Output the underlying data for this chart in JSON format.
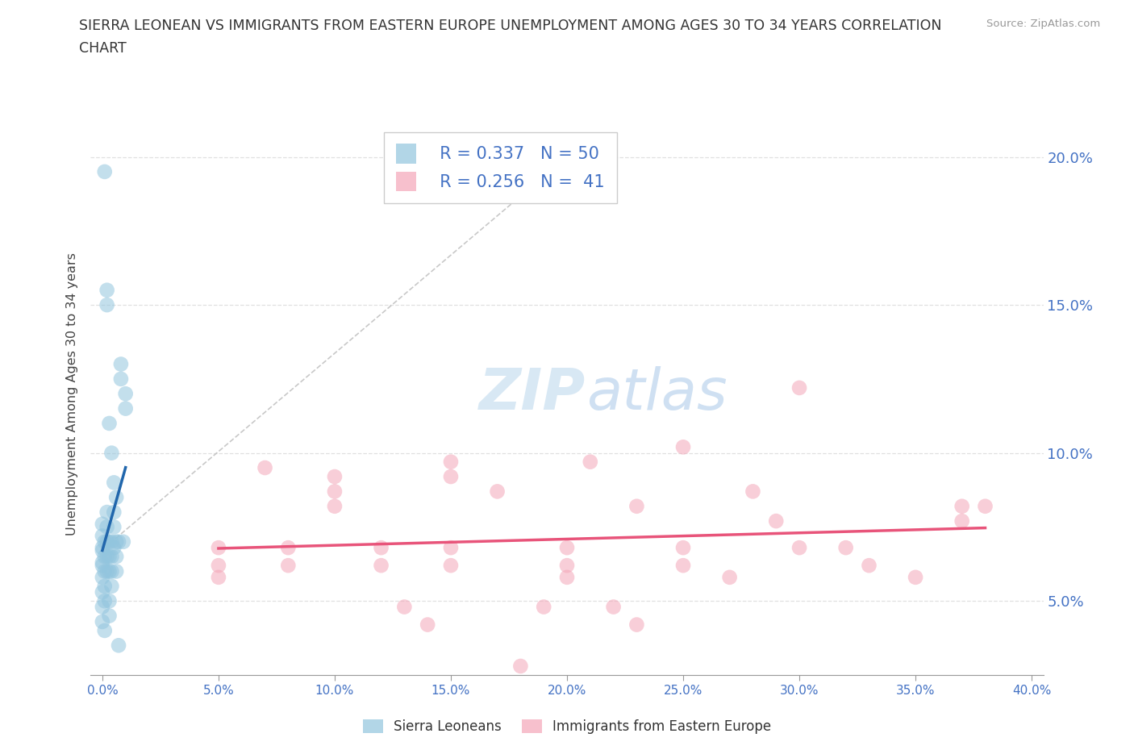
{
  "title_line1": "SIERRA LEONEAN VS IMMIGRANTS FROM EASTERN EUROPE UNEMPLOYMENT AMONG AGES 30 TO 34 YEARS CORRELATION",
  "title_line2": "CHART",
  "source": "Source: ZipAtlas.com",
  "ylabel": "Unemployment Among Ages 30 to 34 years",
  "R_blue": 0.337,
  "N_blue": 50,
  "R_pink": 0.256,
  "N_pink": 41,
  "xlim": [
    -0.005,
    0.405
  ],
  "ylim": [
    0.025,
    0.215
  ],
  "xtick_vals": [
    0.0,
    0.05,
    0.1,
    0.15,
    0.2,
    0.25,
    0.3,
    0.35,
    0.4
  ],
  "ytick_vals": [
    0.05,
    0.1,
    0.15,
    0.2
  ],
  "blue_color": "#92c5de",
  "pink_color": "#f4a6b8",
  "blue_line_color": "#2166ac",
  "pink_line_color": "#e8547a",
  "dash_color": "#bbbbbb",
  "watermark_color": "#c8dff0",
  "label_color": "#4472c4",
  "blue_scatter": [
    [
      0.0,
      0.068
    ],
    [
      0.0,
      0.072
    ],
    [
      0.0,
      0.062
    ],
    [
      0.0,
      0.076
    ],
    [
      0.0,
      0.058
    ],
    [
      0.0,
      0.053
    ],
    [
      0.0,
      0.048
    ],
    [
      0.0,
      0.043
    ],
    [
      0.0,
      0.063
    ],
    [
      0.0,
      0.067
    ],
    [
      0.001,
      0.065
    ],
    [
      0.001,
      0.07
    ],
    [
      0.001,
      0.06
    ],
    [
      0.001,
      0.055
    ],
    [
      0.001,
      0.05
    ],
    [
      0.001,
      0.04
    ],
    [
      0.002,
      0.065
    ],
    [
      0.002,
      0.07
    ],
    [
      0.002,
      0.06
    ],
    [
      0.002,
      0.075
    ],
    [
      0.002,
      0.08
    ],
    [
      0.003,
      0.065
    ],
    [
      0.003,
      0.07
    ],
    [
      0.003,
      0.06
    ],
    [
      0.003,
      0.05
    ],
    [
      0.003,
      0.045
    ],
    [
      0.004,
      0.065
    ],
    [
      0.004,
      0.07
    ],
    [
      0.004,
      0.06
    ],
    [
      0.004,
      0.055
    ],
    [
      0.005,
      0.075
    ],
    [
      0.005,
      0.08
    ],
    [
      0.005,
      0.068
    ],
    [
      0.006,
      0.07
    ],
    [
      0.006,
      0.065
    ],
    [
      0.006,
      0.06
    ],
    [
      0.007,
      0.07
    ],
    [
      0.008,
      0.13
    ],
    [
      0.008,
      0.125
    ],
    [
      0.009,
      0.07
    ],
    [
      0.001,
      0.195
    ],
    [
      0.002,
      0.155
    ],
    [
      0.002,
      0.15
    ],
    [
      0.003,
      0.11
    ],
    [
      0.004,
      0.1
    ],
    [
      0.005,
      0.09
    ],
    [
      0.006,
      0.085
    ],
    [
      0.007,
      0.035
    ],
    [
      0.01,
      0.12
    ],
    [
      0.01,
      0.115
    ]
  ],
  "pink_scatter": [
    [
      0.05,
      0.068
    ],
    [
      0.05,
      0.062
    ],
    [
      0.05,
      0.058
    ],
    [
      0.07,
      0.095
    ],
    [
      0.08,
      0.068
    ],
    [
      0.08,
      0.062
    ],
    [
      0.1,
      0.092
    ],
    [
      0.1,
      0.087
    ],
    [
      0.1,
      0.082
    ],
    [
      0.12,
      0.068
    ],
    [
      0.12,
      0.062
    ],
    [
      0.13,
      0.048
    ],
    [
      0.14,
      0.042
    ],
    [
      0.15,
      0.097
    ],
    [
      0.15,
      0.092
    ],
    [
      0.15,
      0.068
    ],
    [
      0.15,
      0.062
    ],
    [
      0.17,
      0.087
    ],
    [
      0.18,
      0.028
    ],
    [
      0.19,
      0.048
    ],
    [
      0.2,
      0.068
    ],
    [
      0.2,
      0.062
    ],
    [
      0.2,
      0.058
    ],
    [
      0.21,
      0.097
    ],
    [
      0.22,
      0.048
    ],
    [
      0.23,
      0.082
    ],
    [
      0.23,
      0.042
    ],
    [
      0.25,
      0.102
    ],
    [
      0.25,
      0.068
    ],
    [
      0.25,
      0.062
    ],
    [
      0.27,
      0.058
    ],
    [
      0.28,
      0.087
    ],
    [
      0.29,
      0.077
    ],
    [
      0.3,
      0.068
    ],
    [
      0.3,
      0.122
    ],
    [
      0.32,
      0.068
    ],
    [
      0.33,
      0.062
    ],
    [
      0.35,
      0.058
    ],
    [
      0.37,
      0.082
    ],
    [
      0.37,
      0.077
    ],
    [
      0.38,
      0.082
    ]
  ],
  "background_color": "#ffffff",
  "grid_color": "#d9d9d9"
}
